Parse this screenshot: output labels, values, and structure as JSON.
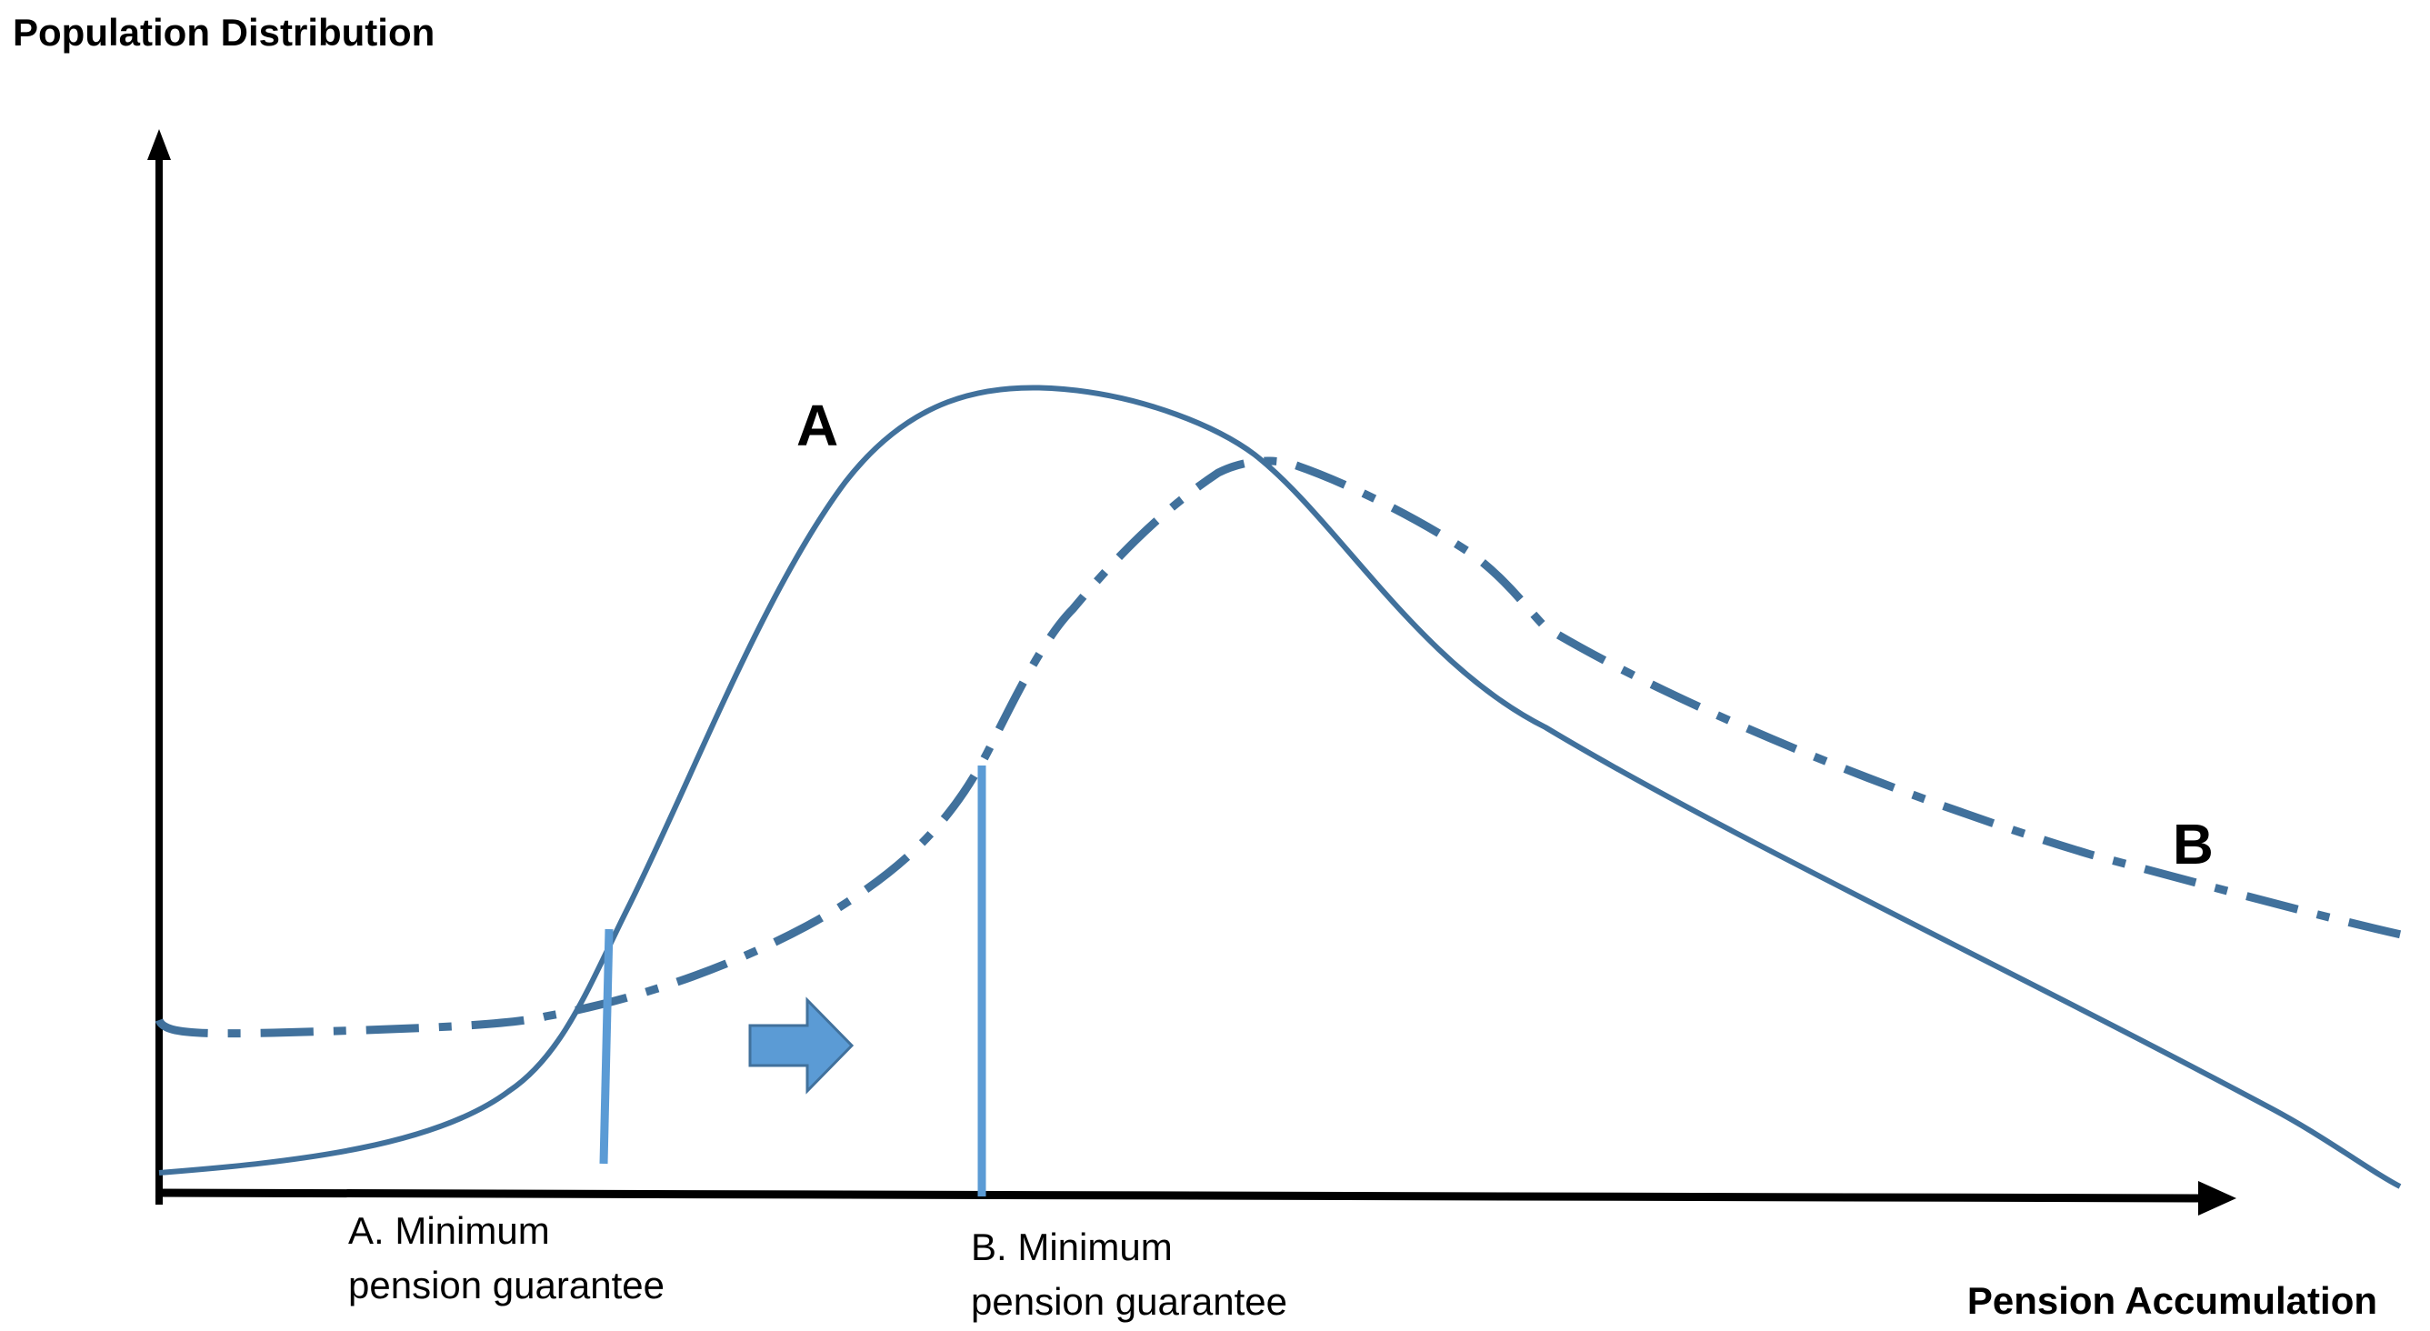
{
  "diagram": {
    "y_axis_label": "Population Distribution",
    "x_axis_label": "Pension Accumulation",
    "curve_a_label": "A",
    "curve_b_label": "B",
    "guarantee_a": {
      "line1": "A. Minimum",
      "line2": "pension guarantee"
    },
    "guarantee_b": {
      "line1": "B. Minimum",
      "line2": "pension guarantee"
    },
    "colors": {
      "axis": "#000000",
      "curve": "#41719C",
      "guarantee_line": "#5B9BD5",
      "shift_arrow_fill": "#5B9BD5",
      "shift_arrow_stroke": "#41719C"
    }
  }
}
